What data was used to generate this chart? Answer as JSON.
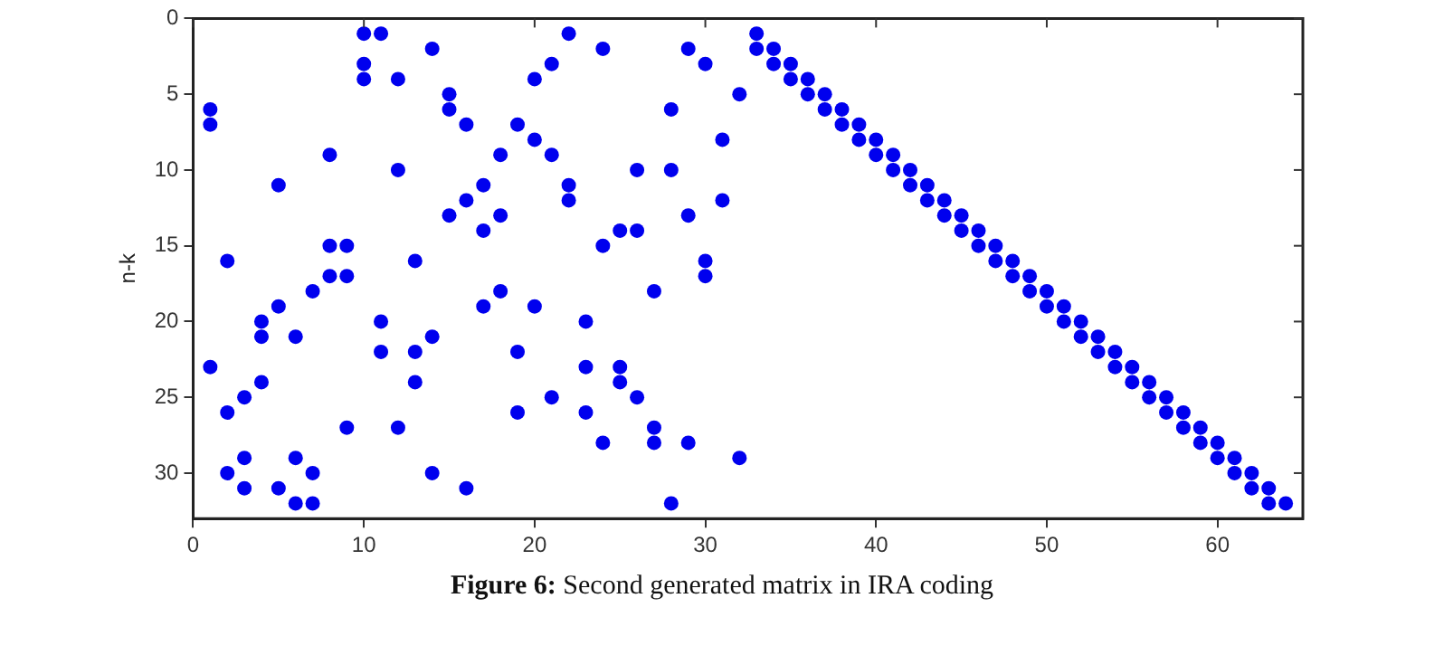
{
  "chart_data": {
    "type": "scatter",
    "ylabel": "n-k",
    "xlim": [
      0,
      65
    ],
    "xticks": [
      0,
      10,
      20,
      30,
      40,
      50,
      60
    ],
    "ylim": [
      33,
      0
    ],
    "yticks": [
      0,
      5,
      10,
      15,
      20,
      25,
      30
    ],
    "grid": false,
    "legend": false,
    "marker": "circle",
    "annotations": [
      "Figure 6: Second generated matrix in IRA coding"
    ],
    "series": [
      {
        "color": "#0000ee",
        "x": [
          1,
          1,
          1,
          2,
          2,
          2,
          3,
          3,
          3,
          4,
          4,
          4,
          5,
          5,
          5,
          6,
          6,
          6,
          7,
          7,
          7,
          8,
          8,
          8,
          9,
          9,
          9,
          10,
          10,
          10,
          11,
          11,
          11,
          12,
          12,
          12,
          13,
          13,
          13,
          14,
          14,
          14,
          15,
          15,
          15,
          16,
          16,
          16,
          17,
          17,
          17,
          18,
          18,
          18,
          19,
          19,
          19,
          20,
          20,
          20,
          21,
          21,
          21,
          22,
          22,
          22,
          23,
          23,
          23,
          24,
          24,
          24,
          25,
          25,
          25,
          26,
          26,
          26,
          27,
          27,
          27,
          28,
          28,
          28,
          29,
          29,
          29,
          30,
          30,
          30,
          31,
          31,
          32,
          32,
          33,
          33,
          34,
          34,
          35,
          35,
          36,
          36,
          37,
          37,
          38,
          38,
          39,
          39,
          40,
          40,
          41,
          41,
          42,
          42,
          43,
          43,
          44,
          44,
          45,
          45,
          46,
          46,
          47,
          47,
          48,
          48,
          49,
          49,
          50,
          50,
          51,
          51,
          52,
          52,
          53,
          53,
          54,
          54,
          55,
          55,
          56,
          56,
          57,
          57,
          58,
          58,
          59,
          59,
          60,
          60,
          61,
          61,
          62,
          62,
          63,
          63,
          64
        ],
        "values": [
          6,
          7,
          23,
          16,
          26,
          30,
          25,
          29,
          31,
          20,
          21,
          24,
          11,
          19,
          31,
          21,
          29,
          32,
          18,
          30,
          32,
          9,
          15,
          17,
          15,
          17,
          27,
          1,
          3,
          4,
          1,
          20,
          22,
          4,
          10,
          27,
          16,
          22,
          24,
          2,
          21,
          30,
          5,
          6,
          13,
          7,
          12,
          31,
          11,
          14,
          19,
          9,
          13,
          18,
          7,
          22,
          26,
          4,
          8,
          19,
          3,
          9,
          25,
          1,
          11,
          12,
          20,
          23,
          26,
          2,
          15,
          28,
          14,
          23,
          24,
          10,
          14,
          25,
          18,
          27,
          28,
          6,
          10,
          32,
          2,
          13,
          28,
          3,
          16,
          17,
          8,
          12,
          5,
          29,
          1,
          2,
          2,
          3,
          3,
          4,
          4,
          5,
          5,
          6,
          6,
          7,
          7,
          8,
          8,
          9,
          9,
          10,
          10,
          11,
          11,
          12,
          12,
          13,
          13,
          14,
          14,
          15,
          15,
          16,
          16,
          17,
          17,
          18,
          18,
          19,
          19,
          20,
          20,
          21,
          21,
          22,
          22,
          23,
          23,
          24,
          24,
          25,
          25,
          26,
          26,
          27,
          27,
          28,
          28,
          29,
          29,
          30,
          30,
          31,
          31,
          32,
          32
        ]
      }
    ]
  }
}
